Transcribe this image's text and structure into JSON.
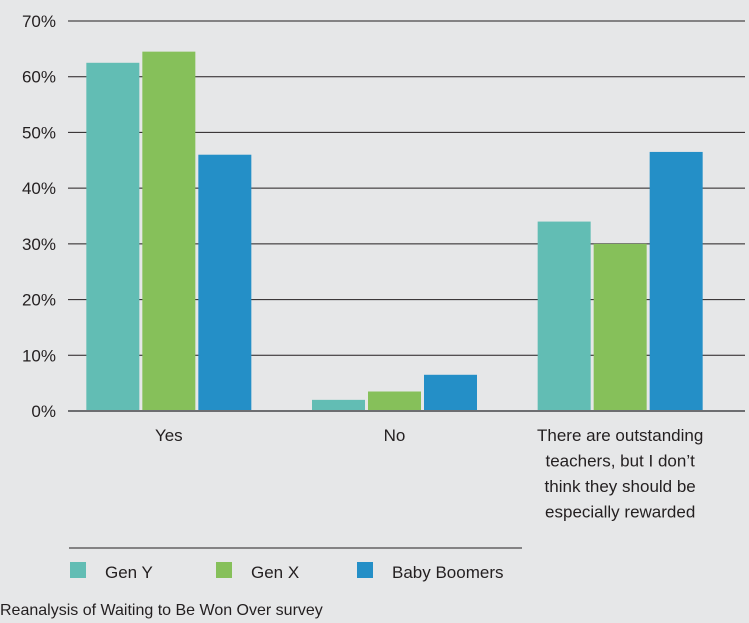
{
  "chart_data": {
    "type": "bar",
    "categories": [
      [
        "Yes"
      ],
      [
        "No"
      ],
      [
        "There are outstanding",
        "teachers, but I don’t",
        "think they should be",
        "especially rewarded"
      ]
    ],
    "series": [
      {
        "name": "Gen Y",
        "color": "#62bdb4",
        "values": [
          62.5,
          2,
          34
        ]
      },
      {
        "name": "Gen X",
        "color": "#86c05a",
        "values": [
          64.5,
          3.5,
          30
        ]
      },
      {
        "name": "Baby Boomers",
        "color": "#248fc7",
        "values": [
          46,
          6.5,
          46.5
        ]
      }
    ],
    "y_ticks": [
      "0%",
      "10%",
      "20%",
      "30%",
      "40%",
      "50%",
      "60%",
      "70%"
    ],
    "ylim": [
      0,
      70
    ],
    "grid": true,
    "legend_position": "bottom-left",
    "source": "Reanalysis of Waiting to Be Won Over survey"
  }
}
